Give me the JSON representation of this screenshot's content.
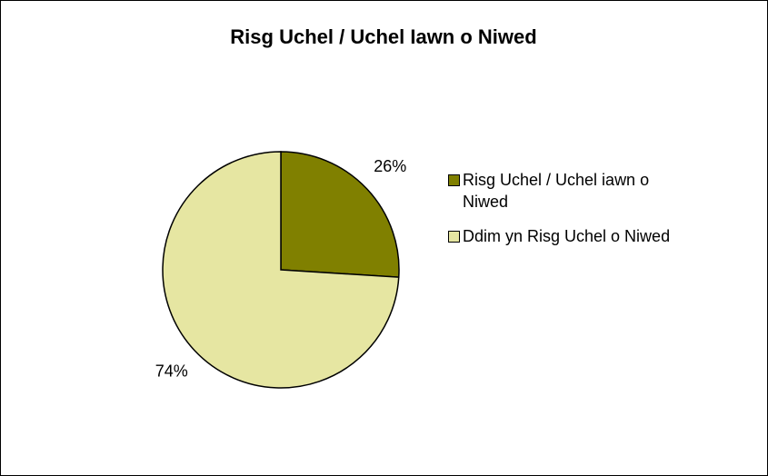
{
  "chart_data": {
    "type": "pie",
    "title": "Risg Uchel / Uchel Iawn o Niwed",
    "categories": [
      "Risg Uchel / Uchel iawn o Niwed",
      "Ddim yn Risg Uchel o Niwed"
    ],
    "values": [
      26,
      74
    ],
    "value_labels": [
      "26%",
      "74%"
    ],
    "colors": [
      "#808000",
      "#e6e6a2"
    ],
    "legend": "right"
  }
}
